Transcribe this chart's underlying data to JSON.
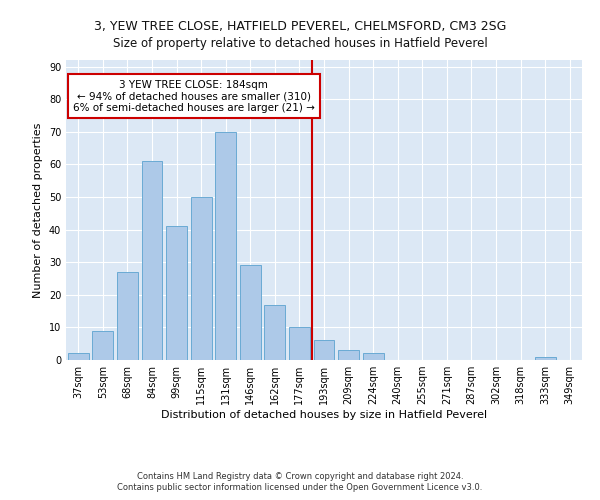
{
  "title1": "3, YEW TREE CLOSE, HATFIELD PEVEREL, CHELMSFORD, CM3 2SG",
  "title2": "Size of property relative to detached houses in Hatfield Peverel",
  "xlabel": "Distribution of detached houses by size in Hatfield Peverel",
  "ylabel": "Number of detached properties",
  "categories": [
    "37sqm",
    "53sqm",
    "68sqm",
    "84sqm",
    "99sqm",
    "115sqm",
    "131sqm",
    "146sqm",
    "162sqm",
    "177sqm",
    "193sqm",
    "209sqm",
    "224sqm",
    "240sqm",
    "255sqm",
    "271sqm",
    "287sqm",
    "302sqm",
    "318sqm",
    "333sqm",
    "349sqm"
  ],
  "values": [
    2,
    9,
    27,
    61,
    41,
    50,
    70,
    29,
    17,
    10,
    6,
    3,
    2,
    0,
    0,
    0,
    0,
    0,
    0,
    1,
    0
  ],
  "bar_color": "#adc9e8",
  "bar_edge_color": "#6aaad4",
  "vline_x": 9.5,
  "vline_color": "#cc0000",
  "annotation_text": "3 YEW TREE CLOSE: 184sqm\n← 94% of detached houses are smaller (310)\n6% of semi-detached houses are larger (21) →",
  "annotation_box_color": "#ffffff",
  "annotation_box_edge": "#cc0000",
  "ylim": [
    0,
    92
  ],
  "yticks": [
    0,
    10,
    20,
    30,
    40,
    50,
    60,
    70,
    80,
    90
  ],
  "bg_color": "#dce8f5",
  "footer1": "Contains HM Land Registry data © Crown copyright and database right 2024.",
  "footer2": "Contains public sector information licensed under the Open Government Licence v3.0.",
  "title_fontsize": 9,
  "subtitle_fontsize": 8.5,
  "axis_label_fontsize": 8,
  "tick_fontsize": 7,
  "footer_fontsize": 6,
  "annotation_fontsize": 7.5
}
